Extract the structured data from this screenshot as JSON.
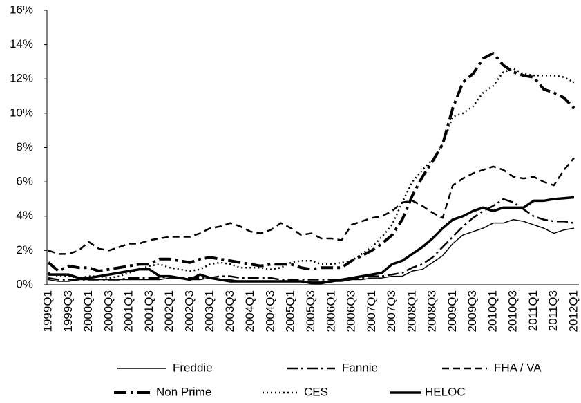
{
  "chart_data": {
    "type": "line",
    "categories": [
      "1999Q1",
      null,
      "1999Q3",
      null,
      "2000Q1",
      null,
      "2000Q3",
      null,
      "2001Q1",
      null,
      "2001Q3",
      null,
      "2002Q1",
      null,
      "2002Q3",
      null,
      "2003Q1",
      null,
      "2003Q3",
      null,
      "2004Q1",
      null,
      "2004Q3",
      null,
      "2005Q1",
      null,
      "2005Q3",
      null,
      "2006Q1",
      null,
      "2006Q3",
      null,
      "2007Q1",
      null,
      "2007Q3",
      null,
      "2008Q1",
      null,
      "2008Q3",
      null,
      "2009Q1",
      null,
      "2009Q3",
      null,
      "2010Q1",
      null,
      "2010Q3",
      null,
      "2011Q1",
      null,
      "2011Q3",
      null,
      "2012Q1"
    ],
    "ylim": [
      0,
      16
    ],
    "yticks": [
      {
        "value": 0,
        "label": "0%"
      },
      {
        "value": 2,
        "label": "2%"
      },
      {
        "value": 4,
        "label": "4%"
      },
      {
        "value": 6,
        "label": "6%"
      },
      {
        "value": 8,
        "label": "8%"
      },
      {
        "value": 10,
        "label": "10%"
      },
      {
        "value": 12,
        "label": "12%"
      },
      {
        "value": 14,
        "label": "14%"
      },
      {
        "value": 16,
        "label": "16%"
      }
    ],
    "legend": "bottom",
    "series": [
      {
        "name": "Freddie",
        "color": "#000000",
        "dash": "none",
        "width": 1.5,
        "values": [
          0.3,
          0.2,
          0.2,
          0.3,
          0.3,
          0.3,
          0.3,
          0.3,
          0.3,
          0.3,
          0.3,
          0.3,
          0.4,
          0.4,
          0.3,
          0.3,
          0.4,
          0.3,
          0.3,
          0.2,
          0.2,
          0.2,
          0.2,
          0.2,
          0.2,
          0.2,
          0.2,
          0.2,
          0.2,
          0.2,
          0.3,
          0.3,
          0.4,
          0.4,
          0.5,
          0.5,
          0.8,
          0.9,
          1.3,
          1.7,
          2.4,
          2.9,
          3.1,
          3.3,
          3.6,
          3.6,
          3.8,
          3.7,
          3.5,
          3.3,
          3.0,
          3.2,
          3.3
        ]
      },
      {
        "name": "Fannie",
        "color": "#000000",
        "dash": "16,5,3,5",
        "width": 2.5,
        "values": [
          0.4,
          0.3,
          0.3,
          0.3,
          0.3,
          0.3,
          0.3,
          0.3,
          0.4,
          0.4,
          0.4,
          0.4,
          0.5,
          0.4,
          0.4,
          0.4,
          0.4,
          0.5,
          0.5,
          0.4,
          0.4,
          0.4,
          0.4,
          0.3,
          0.3,
          0.3,
          0.3,
          0.3,
          0.3,
          0.3,
          0.4,
          0.4,
          0.5,
          0.5,
          0.6,
          0.7,
          1.0,
          1.2,
          1.6,
          2.2,
          2.8,
          3.4,
          3.9,
          4.3,
          4.6,
          5.0,
          4.8,
          4.4,
          4.0,
          3.8,
          3.7,
          3.7,
          3.6
        ]
      },
      {
        "name": "FHA / VA",
        "color": "#000000",
        "dash": "10,6",
        "width": 2.5,
        "values": [
          2.0,
          1.8,
          1.8,
          2.0,
          2.5,
          2.1,
          2.0,
          2.2,
          2.4,
          2.4,
          2.6,
          2.7,
          2.8,
          2.8,
          2.8,
          3.0,
          3.3,
          3.4,
          3.6,
          3.4,
          3.1,
          3.0,
          3.2,
          3.6,
          3.3,
          2.9,
          3.0,
          2.7,
          2.7,
          2.6,
          3.5,
          3.7,
          3.9,
          4.0,
          4.3,
          4.8,
          4.9,
          4.6,
          4.2,
          3.9,
          5.8,
          6.2,
          6.5,
          6.7,
          6.9,
          6.7,
          6.3,
          6.2,
          6.3,
          6.0,
          5.8,
          6.7,
          7.4
        ]
      },
      {
        "name": "Non Prime",
        "color": "#000000",
        "dash": "18,6,4,6",
        "width": 4,
        "values": [
          1.3,
          0.8,
          1.1,
          1.0,
          1.0,
          0.8,
          0.9,
          1.0,
          1.1,
          1.2,
          1.2,
          1.5,
          1.5,
          1.4,
          1.3,
          1.5,
          1.6,
          1.5,
          1.4,
          1.3,
          1.2,
          1.1,
          1.2,
          1.2,
          1.2,
          1.0,
          0.9,
          1.0,
          1.0,
          1.0,
          1.4,
          1.7,
          2.0,
          2.4,
          2.9,
          3.8,
          5.2,
          6.3,
          7.2,
          8.2,
          10.3,
          11.8,
          12.3,
          13.2,
          13.5,
          12.8,
          12.4,
          12.2,
          12.1,
          11.4,
          11.2,
          10.9,
          10.3
        ]
      },
      {
        "name": "CES",
        "color": "#000000",
        "dash": "2,4",
        "width": 2.5,
        "values": [
          0.7,
          0.5,
          0.5,
          0.4,
          0.5,
          0.5,
          0.4,
          0.5,
          0.7,
          0.9,
          1.1,
          1.2,
          1.0,
          0.9,
          0.8,
          0.9,
          1.2,
          1.3,
          1.2,
          1.0,
          1.0,
          1.0,
          0.9,
          1.0,
          1.3,
          1.4,
          1.4,
          1.2,
          1.2,
          1.3,
          1.4,
          1.8,
          2.2,
          2.8,
          3.5,
          4.8,
          6.0,
          6.7,
          7.3,
          8.2,
          9.8,
          10.0,
          10.4,
          11.2,
          11.6,
          12.4,
          12.6,
          12.3,
          12.2,
          12.2,
          12.2,
          12.1,
          11.8
        ]
      },
      {
        "name": "HELOC",
        "color": "#000000",
        "dash": "none",
        "width": 3.5,
        "values": [
          0.6,
          0.6,
          0.6,
          0.4,
          0.4,
          0.5,
          0.6,
          0.7,
          0.8,
          0.9,
          0.9,
          0.5,
          0.5,
          0.4,
          0.3,
          0.6,
          0.4,
          0.3,
          0.2,
          0.2,
          0.2,
          0.2,
          0.2,
          0.2,
          0.2,
          0.2,
          0.1,
          0.1,
          0.2,
          0.3,
          0.4,
          0.5,
          0.6,
          0.7,
          1.2,
          1.4,
          1.8,
          2.2,
          2.7,
          3.3,
          3.8,
          4.0,
          4.3,
          4.5,
          4.3,
          4.5,
          4.5,
          4.5,
          4.9,
          4.9,
          5.0,
          5.05,
          5.1
        ]
      }
    ]
  }
}
